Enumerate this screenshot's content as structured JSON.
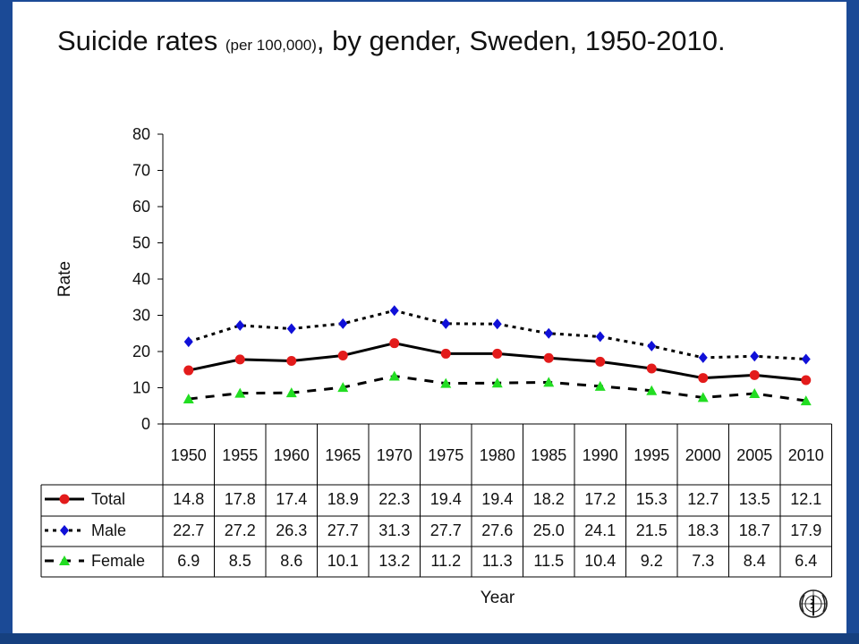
{
  "page": {
    "title_main": "Suicide rates ",
    "title_small": "(per 100,000)",
    "title_rest": ", by gender, Sweden, 1950-2010.",
    "background_color": "#1b4a96",
    "logo_icon": "who-emblem-icon"
  },
  "chart_data": {
    "type": "line",
    "title": "Suicide rates (per 100,000), by gender, Sweden, 1950-2010.",
    "xlabel": "Year",
    "ylabel": "Rate",
    "ylim": [
      0,
      80
    ],
    "yticks": [
      0,
      10,
      20,
      30,
      40,
      50,
      60,
      70,
      80
    ],
    "grid": false,
    "legend": "data-table-left",
    "categories": [
      "1950",
      "1955",
      "1960",
      "1965",
      "1970",
      "1975",
      "1980",
      "1985",
      "1990",
      "1995",
      "2000",
      "2005",
      "2010"
    ],
    "series": [
      {
        "name": "Total",
        "color": "#e31b1b",
        "marker": "circle",
        "line": "solid",
        "values": [
          14.8,
          17.8,
          17.4,
          18.9,
          22.3,
          19.4,
          19.4,
          18.2,
          17.2,
          15.3,
          12.7,
          13.5,
          12.1
        ]
      },
      {
        "name": "Male",
        "color": "#1010d8",
        "marker": "diamond",
        "line": "dotted",
        "values": [
          22.7,
          27.2,
          26.3,
          27.7,
          31.3,
          27.7,
          27.6,
          25.0,
          24.1,
          21.5,
          18.3,
          18.7,
          17.9
        ]
      },
      {
        "name": "Female",
        "color": "#22dd22",
        "marker": "triangle",
        "line": "dashed",
        "values": [
          6.9,
          8.5,
          8.6,
          10.1,
          13.2,
          11.2,
          11.3,
          11.5,
          10.4,
          9.2,
          7.3,
          8.4,
          6.4
        ]
      }
    ]
  }
}
